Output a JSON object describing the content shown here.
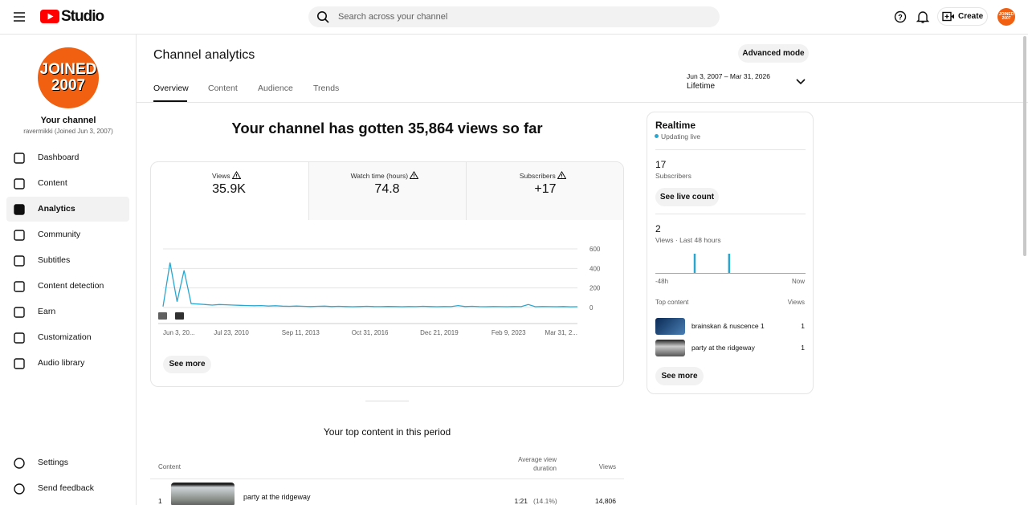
{
  "header": {
    "logo": "Studio",
    "search_placeholder": "Search across your channel",
    "create": "Create",
    "avatar": [
      "JOINED",
      "2007"
    ]
  },
  "sidebar": {
    "avatar": [
      "JOINED",
      "2007"
    ],
    "channel_title": "Your channel",
    "channel_subtitle": "ravermikki (Joined Jun 3, 2007)",
    "nav": [
      "Dashboard",
      "Content",
      "Analytics",
      "Community",
      "Subtitles",
      "Content detection",
      "Earn",
      "Customization",
      "Audio library"
    ],
    "footer_nav": [
      "Settings",
      "Send feedback"
    ]
  },
  "page": {
    "title": "Channel analytics",
    "advanced_mode": "Advanced mode",
    "tabs": [
      "Overview",
      "Content",
      "Audience",
      "Trends"
    ],
    "date_range": "Jun 3, 2007 – Mar 31, 2026",
    "period": "Lifetime",
    "headline": "Your channel has gotten 35,864 views so far"
  },
  "overview_card": {
    "metrics": [
      {
        "label": "Views",
        "value": "35.9K"
      },
      {
        "label": "Watch time (hours)",
        "value": "74.8"
      },
      {
        "label": "Subscribers",
        "value": "+17"
      }
    ],
    "chart": {
      "ylim": [
        0,
        600
      ],
      "yticks": [
        0,
        200,
        400,
        600
      ],
      "color": "#2aa7cf",
      "x_labels": [
        "Jun 3, 20...",
        "Jul 23, 2010",
        "Sep 11, 2013",
        "Oct 31, 2016",
        "Dec 21, 2019",
        "Feb 9, 2023",
        "Mar 31, 2..."
      ],
      "values": [
        10,
        460,
        60,
        380,
        40,
        35,
        30,
        25,
        30,
        28,
        25,
        22,
        20,
        18,
        20,
        15,
        18,
        14,
        12,
        15,
        12,
        10,
        12,
        14,
        10,
        12,
        10,
        8,
        10,
        12,
        10,
        9,
        11,
        10,
        8,
        10,
        9,
        12,
        10,
        8,
        10,
        9,
        20,
        10,
        12,
        9,
        8,
        10,
        9,
        8,
        10,
        9,
        30,
        8,
        10,
        9,
        8,
        10,
        7,
        8
      ]
    },
    "see_more": "See more"
  },
  "realtime": {
    "title": "Realtime",
    "status": "Updating live",
    "subscribers": "17",
    "subscribers_label": "Subscribers",
    "see_live_count": "See live count",
    "views": "2",
    "views_label": "Views · Last 48 hours",
    "hourly_views": [
      0,
      0,
      0,
      0,
      0,
      0,
      0,
      0,
      0,
      0,
      0,
      0,
      1,
      0,
      0,
      0,
      0,
      0,
      0,
      0,
      0,
      0,
      0,
      1,
      0,
      0,
      0,
      0,
      0,
      0,
      0,
      0,
      0,
      0,
      0,
      0,
      0,
      0,
      0,
      0,
      0,
      0,
      0,
      0,
      0,
      0,
      0,
      0
    ],
    "x_start": "-48h",
    "x_end": "Now",
    "top_content_label": "Top content",
    "views_column": "Views",
    "items": [
      {
        "title": "brainskan & nuscence 1",
        "views": "1"
      },
      {
        "title": "party at the ridgeway",
        "views": "1"
      }
    ],
    "see_more": "See more"
  },
  "top_content": {
    "title": "Your top content in this period",
    "columns": [
      "Content",
      "Average view duration",
      "Views"
    ],
    "rows": [
      {
        "rank": "1",
        "title": "party at the ridgeway",
        "avg_duration": "1:21",
        "avg_percent": "(14.1%)",
        "views": "14,806"
      }
    ]
  }
}
